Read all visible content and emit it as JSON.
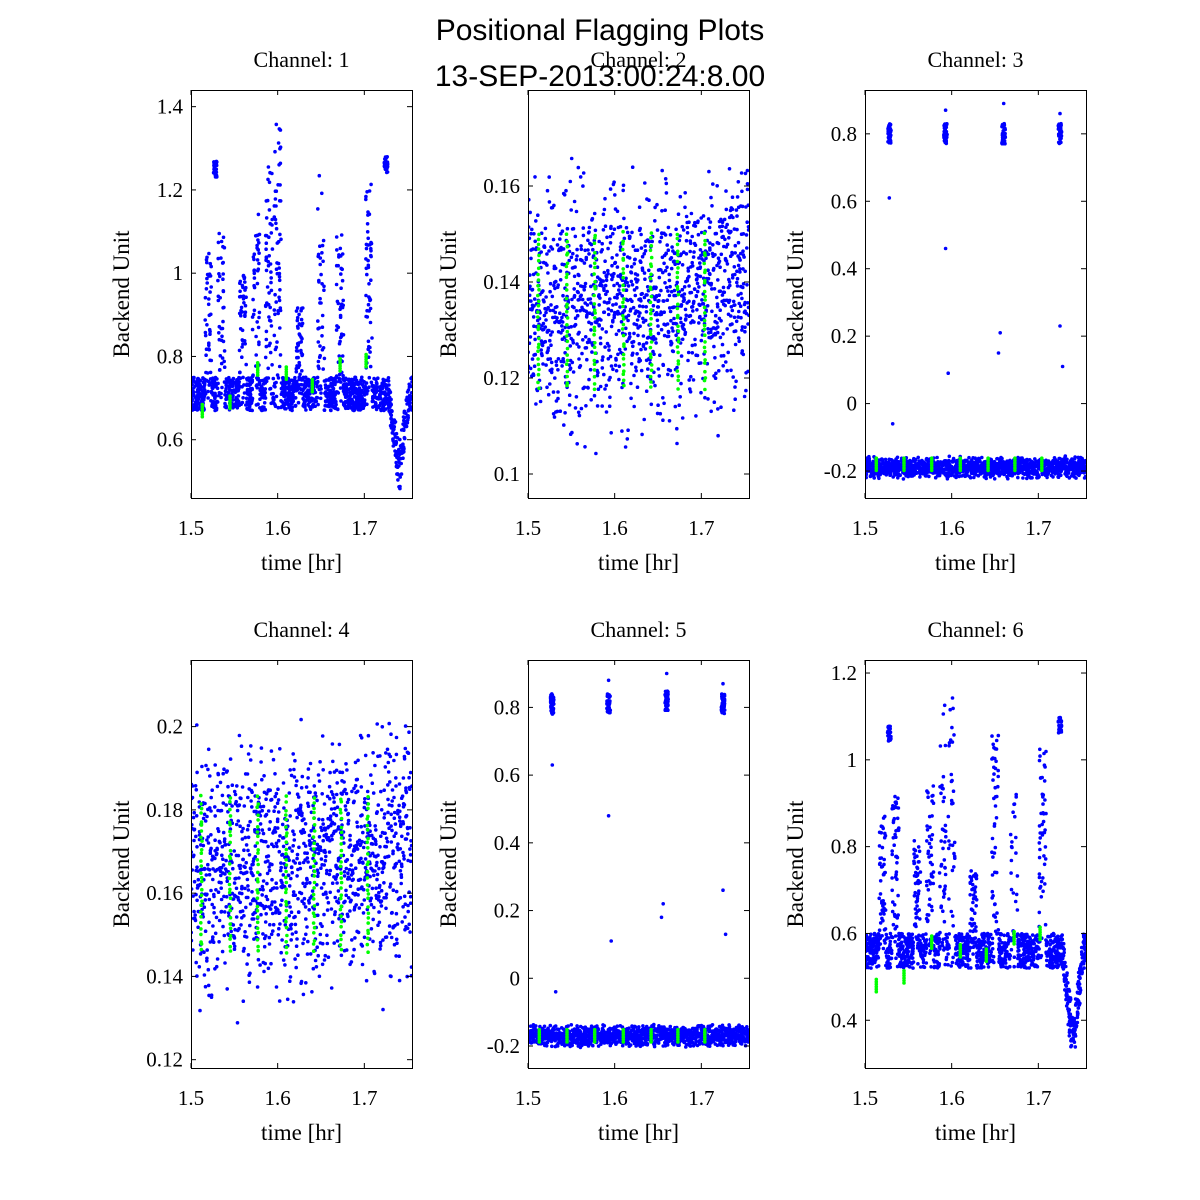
{
  "figure": {
    "title_line1": "Positional Flagging Plots",
    "title_line2": "13-SEP-2013:00:24:8.00"
  },
  "colors": {
    "data": "#0000ff",
    "flag": "#00ff00",
    "axes": "#000000",
    "background": "#ffffff"
  },
  "chart_data": [
    {
      "type": "scatter",
      "title": "Channel: 1",
      "xlabel": "time [hr]",
      "ylabel": "Backend Unit",
      "xlim": [
        1.5,
        1.755
      ],
      "ylim": [
        0.46,
        1.44
      ],
      "xticks": [
        1.5,
        1.6,
        1.7
      ],
      "xticklabels": [
        "1.5",
        "1.6",
        "1.7"
      ],
      "yticks": [
        0.6,
        0.8,
        1.0,
        1.2,
        1.4
      ],
      "yticklabels": [
        "0.6",
        "0.8",
        "1",
        "1.2",
        "1.4"
      ],
      "grid": false,
      "series": [
        {
          "role": "data",
          "color": "#0000ff",
          "pattern": "peaks",
          "baseline": 0.71,
          "noise": 0.08,
          "peaks": [
            {
              "x": 1.52,
              "y": 1.05
            },
            {
              "x": 1.535,
              "y": 1.1
            },
            {
              "x": 1.56,
              "y": 1.0
            },
            {
              "x": 1.575,
              "y": 1.15
            },
            {
              "x": 1.59,
              "y": 1.3
            },
            {
              "x": 1.6,
              "y": 1.36
            },
            {
              "x": 1.625,
              "y": 0.92
            },
            {
              "x": 1.65,
              "y": 1.24
            },
            {
              "x": 1.672,
              "y": 1.1
            },
            {
              "x": 1.705,
              "y": 1.22
            }
          ],
          "clusters": [
            {
              "x": 1.528,
              "y": 1.25
            },
            {
              "x": 1.725,
              "y": 1.26
            }
          ],
          "dip": {
            "x": 1.74,
            "y": 0.5
          }
        },
        {
          "role": "flagged",
          "color": "#00ff00",
          "points": [
            {
              "x": 1.513,
              "y": 0.67
            },
            {
              "x": 1.545,
              "y": 0.69
            },
            {
              "x": 1.577,
              "y": 0.77
            },
            {
              "x": 1.61,
              "y": 0.76
            },
            {
              "x": 1.64,
              "y": 0.73
            },
            {
              "x": 1.672,
              "y": 0.78
            },
            {
              "x": 1.702,
              "y": 0.79
            }
          ]
        }
      ]
    },
    {
      "type": "scatter",
      "title": "Channel: 2",
      "xlabel": "time [hr]",
      "ylabel": "Backend Unit",
      "xlim": [
        1.5,
        1.755
      ],
      "ylim": [
        0.095,
        0.18
      ],
      "xticks": [
        1.5,
        1.6,
        1.7
      ],
      "xticklabels": [
        "1.5",
        "1.6",
        "1.7"
      ],
      "yticks": [
        0.1,
        0.12,
        0.14,
        0.16
      ],
      "yticklabels": [
        "0.1",
        "0.12",
        "0.14",
        "0.16"
      ],
      "grid": false,
      "series": [
        {
          "role": "data",
          "color": "#0000ff",
          "pattern": "band",
          "center": 0.134,
          "halfwidth": 0.02,
          "spread": 0.033
        },
        {
          "role": "flagged",
          "color": "#00ff00",
          "pattern": "columns",
          "x": [
            1.512,
            1.545,
            1.577,
            1.61,
            1.642,
            1.673,
            1.704
          ],
          "ymin": 0.118,
          "ymax": 0.15
        }
      ]
    },
    {
      "type": "scatter",
      "title": "Channel: 3",
      "xlabel": "time [hr]",
      "ylabel": "Backend Unit",
      "xlim": [
        1.5,
        1.755
      ],
      "ylim": [
        -0.28,
        0.93
      ],
      "xticks": [
        1.5,
        1.6,
        1.7
      ],
      "xticklabels": [
        "1.5",
        "1.6",
        "1.7"
      ],
      "yticks": [
        -0.2,
        0.0,
        0.2,
        0.4,
        0.6,
        0.8
      ],
      "yticklabels": [
        "-0.2",
        "0",
        "0.2",
        "0.4",
        "0.6",
        "0.8"
      ],
      "grid": false,
      "series": [
        {
          "role": "data",
          "color": "#0000ff",
          "pattern": "flat",
          "level": -0.19,
          "spread": 0.035,
          "clusters": [
            {
              "x": 1.528,
              "y": 0.8
            },
            {
              "x": 1.593,
              "y": 0.8
            },
            {
              "x": 1.66,
              "y": 0.8
            },
            {
              "x": 1.725,
              "y": 0.8
            }
          ],
          "outliers": [
            {
              "x": 1.528,
              "y": 0.61
            },
            {
              "x": 1.532,
              "y": -0.06
            },
            {
              "x": 1.593,
              "y": 0.87
            },
            {
              "x": 1.593,
              "y": 0.46
            },
            {
              "x": 1.596,
              "y": 0.09
            },
            {
              "x": 1.656,
              "y": 0.21
            },
            {
              "x": 1.654,
              "y": 0.15
            },
            {
              "x": 1.66,
              "y": 0.89
            },
            {
              "x": 1.725,
              "y": 0.23
            },
            {
              "x": 1.728,
              "y": 0.11
            },
            {
              "x": 1.725,
              "y": 0.86
            }
          ]
        },
        {
          "role": "flagged",
          "color": "#00ff00",
          "points": [
            {
              "x": 1.513,
              "y": -0.18
            },
            {
              "x": 1.545,
              "y": -0.18
            },
            {
              "x": 1.577,
              "y": -0.18
            },
            {
              "x": 1.61,
              "y": -0.18
            },
            {
              "x": 1.642,
              "y": -0.18
            },
            {
              "x": 1.673,
              "y": -0.18
            },
            {
              "x": 1.704,
              "y": -0.18
            }
          ]
        }
      ]
    },
    {
      "type": "scatter",
      "title": "Channel: 4",
      "xlabel": "time [hr]",
      "ylabel": "Backend Unit",
      "xlim": [
        1.5,
        1.755
      ],
      "ylim": [
        0.118,
        0.216
      ],
      "xticks": [
        1.5,
        1.6,
        1.7
      ],
      "xticklabels": [
        "1.5",
        "1.6",
        "1.7"
      ],
      "yticks": [
        0.12,
        0.14,
        0.16,
        0.18,
        0.2
      ],
      "yticklabels": [
        "0.12",
        "0.14",
        "0.16",
        "0.18",
        "0.2"
      ],
      "grid": false,
      "series": [
        {
          "role": "data",
          "color": "#0000ff",
          "pattern": "band",
          "center": 0.164,
          "halfwidth": 0.022,
          "spread": 0.04
        },
        {
          "role": "flagged",
          "color": "#00ff00",
          "pattern": "columns",
          "x": [
            1.512,
            1.545,
            1.577,
            1.61,
            1.642,
            1.673,
            1.704
          ],
          "ymin": 0.146,
          "ymax": 0.183
        }
      ]
    },
    {
      "type": "scatter",
      "title": "Channel: 5",
      "xlabel": "time [hr]",
      "ylabel": "Backend Unit",
      "xlim": [
        1.5,
        1.755
      ],
      "ylim": [
        -0.265,
        0.94
      ],
      "xticks": [
        1.5,
        1.6,
        1.7
      ],
      "xticklabels": [
        "1.5",
        "1.6",
        "1.7"
      ],
      "yticks": [
        -0.2,
        0.0,
        0.2,
        0.4,
        0.6,
        0.8
      ],
      "yticklabels": [
        "-0.2",
        "0",
        "0.2",
        "0.4",
        "0.6",
        "0.8"
      ],
      "grid": false,
      "series": [
        {
          "role": "data",
          "color": "#0000ff",
          "pattern": "flat",
          "level": -0.17,
          "spread": 0.035,
          "clusters": [
            {
              "x": 1.528,
              "y": 0.81
            },
            {
              "x": 1.593,
              "y": 0.81
            },
            {
              "x": 1.66,
              "y": 0.82
            },
            {
              "x": 1.725,
              "y": 0.81
            }
          ],
          "outliers": [
            {
              "x": 1.528,
              "y": 0.63
            },
            {
              "x": 1.532,
              "y": -0.04
            },
            {
              "x": 1.593,
              "y": 0.88
            },
            {
              "x": 1.593,
              "y": 0.48
            },
            {
              "x": 1.596,
              "y": 0.11
            },
            {
              "x": 1.656,
              "y": 0.22
            },
            {
              "x": 1.654,
              "y": 0.18
            },
            {
              "x": 1.66,
              "y": 0.9
            },
            {
              "x": 1.725,
              "y": 0.26
            },
            {
              "x": 1.728,
              "y": 0.13
            },
            {
              "x": 1.725,
              "y": 0.87
            }
          ]
        },
        {
          "role": "flagged",
          "color": "#00ff00",
          "points": [
            {
              "x": 1.513,
              "y": -0.17
            },
            {
              "x": 1.545,
              "y": -0.17
            },
            {
              "x": 1.577,
              "y": -0.17
            },
            {
              "x": 1.61,
              "y": -0.17
            },
            {
              "x": 1.642,
              "y": -0.17
            },
            {
              "x": 1.673,
              "y": -0.17
            },
            {
              "x": 1.704,
              "y": -0.17
            }
          ]
        }
      ]
    },
    {
      "type": "scatter",
      "title": "Channel: 6",
      "xlabel": "time [hr]",
      "ylabel": "Backend Unit",
      "xlim": [
        1.5,
        1.755
      ],
      "ylim": [
        0.29,
        1.23
      ],
      "xticks": [
        1.5,
        1.6,
        1.7
      ],
      "xticklabels": [
        "1.5",
        "1.6",
        "1.7"
      ],
      "yticks": [
        0.4,
        0.6,
        0.8,
        1.0,
        1.2
      ],
      "yticklabels": [
        "0.4",
        "0.6",
        "0.8",
        "1",
        "1.2"
      ],
      "grid": false,
      "series": [
        {
          "role": "data",
          "color": "#0000ff",
          "pattern": "peaks",
          "baseline": 0.56,
          "noise": 0.08,
          "peaks": [
            {
              "x": 1.52,
              "y": 0.88
            },
            {
              "x": 1.535,
              "y": 0.92
            },
            {
              "x": 1.56,
              "y": 0.82
            },
            {
              "x": 1.575,
              "y": 0.95
            },
            {
              "x": 1.59,
              "y": 1.13
            },
            {
              "x": 1.6,
              "y": 1.18
            },
            {
              "x": 1.625,
              "y": 0.75
            },
            {
              "x": 1.65,
              "y": 1.06
            },
            {
              "x": 1.672,
              "y": 0.92
            },
            {
              "x": 1.705,
              "y": 1.05
            }
          ],
          "clusters": [
            {
              "x": 1.528,
              "y": 1.06
            },
            {
              "x": 1.725,
              "y": 1.08
            }
          ],
          "dip": {
            "x": 1.74,
            "y": 0.31
          }
        },
        {
          "role": "flagged",
          "color": "#00ff00",
          "points": [
            {
              "x": 1.513,
              "y": 0.48
            },
            {
              "x": 1.545,
              "y": 0.5
            },
            {
              "x": 1.577,
              "y": 0.58
            },
            {
              "x": 1.61,
              "y": 0.56
            },
            {
              "x": 1.64,
              "y": 0.55
            },
            {
              "x": 1.672,
              "y": 0.59
            },
            {
              "x": 1.702,
              "y": 0.6
            }
          ]
        }
      ]
    }
  ]
}
